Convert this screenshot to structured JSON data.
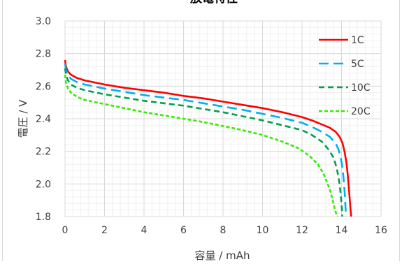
{
  "chart_data": {
    "type": "line",
    "title": "放電特性",
    "xlabel": "容量 / mAh",
    "ylabel": "電圧 / V",
    "xlim": [
      0,
      16
    ],
    "ylim": [
      1.8,
      3.0
    ],
    "xticks": [
      "0",
      "2",
      "4",
      "6",
      "8",
      "10",
      "12",
      "14",
      "16"
    ],
    "yticks": [
      "1.8",
      "2.0",
      "2.2",
      "2.4",
      "2.6",
      "2.8",
      "3.0"
    ],
    "grid": true,
    "legend_position": "top-right",
    "series": [
      {
        "name": "1C",
        "color": "#ff0000",
        "dash": "solid",
        "x": [
          0,
          0.05,
          0.15,
          0.3,
          0.6,
          1,
          2,
          3,
          4,
          5,
          6,
          7,
          8,
          9,
          10,
          11,
          12,
          12.5,
          13,
          13.4,
          13.7,
          13.9,
          14.05,
          14.15,
          14.25,
          14.32,
          14.38,
          14.42,
          14.46,
          14.49
        ],
        "y": [
          2.76,
          2.72,
          2.69,
          2.67,
          2.65,
          2.635,
          2.61,
          2.59,
          2.575,
          2.56,
          2.54,
          2.525,
          2.505,
          2.485,
          2.465,
          2.44,
          2.41,
          2.39,
          2.365,
          2.345,
          2.32,
          2.29,
          2.25,
          2.2,
          2.13,
          2.05,
          1.96,
          1.9,
          1.84,
          1.8
        ]
      },
      {
        "name": "5C",
        "color": "#00b0f0",
        "dash": "long-dash",
        "x": [
          0,
          0.05,
          0.15,
          0.3,
          0.6,
          1,
          2,
          3,
          4,
          5,
          6,
          7,
          8,
          9,
          10,
          11,
          12,
          12.5,
          13,
          13.4,
          13.7,
          13.85,
          13.95,
          14.02,
          14.08,
          14.13,
          14.17,
          14.2,
          14.23
        ],
        "y": [
          2.74,
          2.7,
          2.67,
          2.645,
          2.625,
          2.61,
          2.585,
          2.565,
          2.545,
          2.53,
          2.515,
          2.495,
          2.475,
          2.455,
          2.43,
          2.405,
          2.375,
          2.35,
          2.32,
          2.29,
          2.25,
          2.21,
          2.17,
          2.12,
          2.06,
          2.0,
          1.93,
          1.86,
          1.8
        ]
      },
      {
        "name": "10C",
        "color": "#00a050",
        "dash": "dash",
        "x": [
          0,
          0.05,
          0.15,
          0.3,
          0.6,
          1,
          2,
          3,
          4,
          5,
          6,
          7,
          8,
          9,
          10,
          11,
          12,
          12.5,
          13,
          13.35,
          13.6,
          13.75,
          13.85,
          13.92,
          13.97,
          14.01,
          14.04
        ],
        "y": [
          2.71,
          2.67,
          2.635,
          2.61,
          2.59,
          2.575,
          2.55,
          2.53,
          2.51,
          2.495,
          2.48,
          2.46,
          2.44,
          2.415,
          2.39,
          2.36,
          2.33,
          2.3,
          2.26,
          2.21,
          2.16,
          2.1,
          2.04,
          1.98,
          1.92,
          1.86,
          1.8
        ]
      },
      {
        "name": "20C",
        "color": "#33ee00",
        "dash": "short-dash",
        "x": [
          0,
          0.05,
          0.15,
          0.3,
          0.6,
          1,
          2,
          3,
          4,
          5,
          6,
          7,
          8,
          9,
          10,
          11,
          11.8,
          12.4,
          12.8,
          13.1,
          13.3,
          13.45,
          13.55,
          13.63,
          13.7,
          13.75,
          13.8
        ],
        "y": [
          2.67,
          2.62,
          2.585,
          2.56,
          2.535,
          2.515,
          2.49,
          2.465,
          2.44,
          2.42,
          2.4,
          2.38,
          2.355,
          2.33,
          2.3,
          2.26,
          2.22,
          2.17,
          2.12,
          2.06,
          2.0,
          1.95,
          1.9,
          1.86,
          1.83,
          1.81,
          1.8
        ]
      }
    ]
  }
}
